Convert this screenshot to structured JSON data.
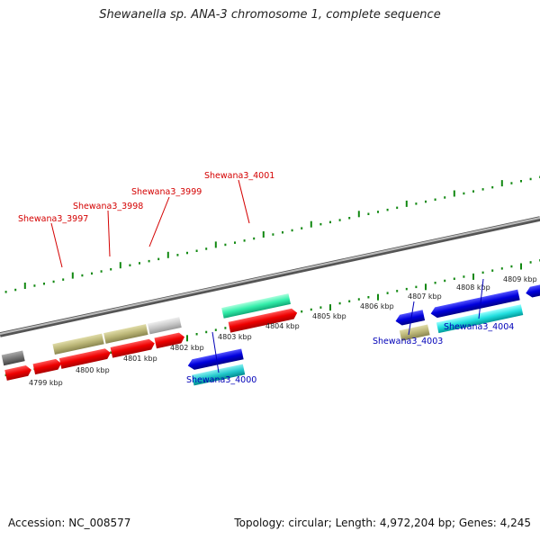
{
  "title": "Shewanella sp. ANA-3 chromosome 1, complete sequence",
  "footer": {
    "accession": "Accession: NC_008577",
    "summary": "Topology: circular; Length: 4,972,204 bp; Genes: 4,245"
  },
  "colors": {
    "forward_red": "#ee0000",
    "reverse_blue": "#0000dd",
    "cyan": "#00dddd",
    "mint": "#33eeaa",
    "khaki": "#bbb677",
    "grey": "#c8c8c8",
    "tick_green": "#118811",
    "red_label": "#d40000",
    "blue_label": "#0000b8"
  },
  "kbp_labels": [
    "4799 kbp",
    "4800 kbp",
    "4801 kbp",
    "4802 kbp",
    "4803 kbp",
    "4804 kbp",
    "4805 kbp",
    "4806 kbp",
    "4807 kbp",
    "4808 kbp",
    "4809 kbp"
  ],
  "gene_labels_top": [
    "Shewana3_3997",
    "Shewana3_3998",
    "Shewana3_3999",
    "Shewana3_4001"
  ],
  "gene_labels_bottom": [
    "Shewana3_4000",
    "Shewana3_4003",
    "Shewana3_4004"
  ]
}
